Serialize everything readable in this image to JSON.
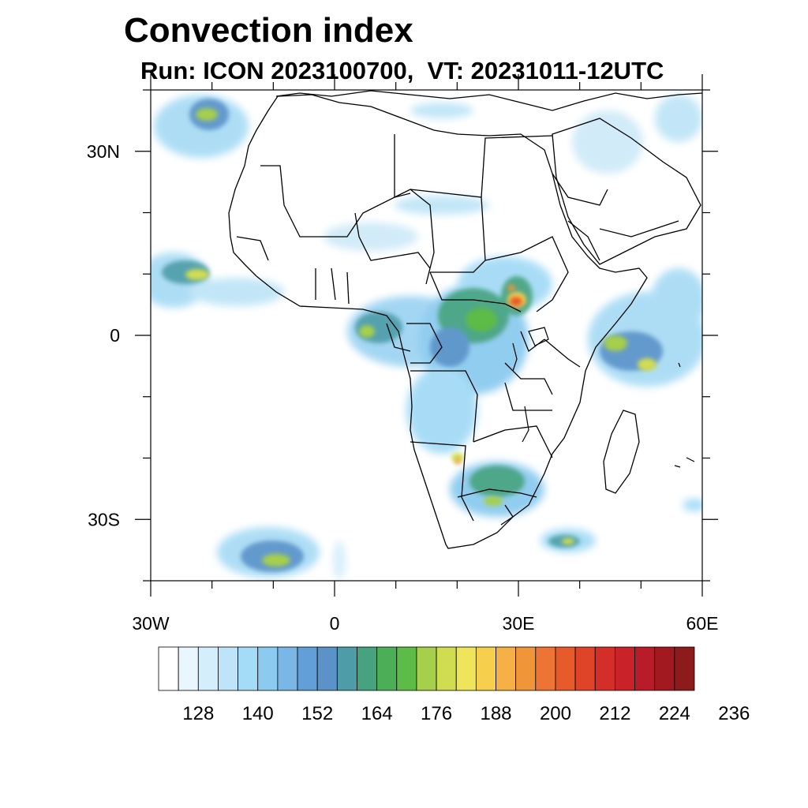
{
  "title": "Convection index",
  "subtitle": "Run: ICON 2023100700,  VT: 20231011-12UTC",
  "map": {
    "projection": "cylindrical-equidistant",
    "lon_range": [
      -30,
      60
    ],
    "lat_range": [
      -40,
      40
    ],
    "lon_ticks": [
      {
        "value": -30,
        "label": "30W"
      },
      {
        "value": 0,
        "label": "0"
      },
      {
        "value": 30,
        "label": "30E"
      },
      {
        "value": 60,
        "label": "60E"
      }
    ],
    "lat_ticks": [
      {
        "value": 30,
        "label": "30N"
      },
      {
        "value": 0,
        "label": "0"
      },
      {
        "value": -30,
        "label": "30S"
      }
    ],
    "field_name": "Convection index"
  },
  "colorbar": {
    "levels": [
      "128",
      "140",
      "152",
      "164",
      "176",
      "188",
      "200",
      "212",
      "224",
      "236"
    ],
    "colors": [
      "#ffffff",
      "#eaf6fd",
      "#d4eefb",
      "#bde4f8",
      "#a4dbf6",
      "#8ccbef",
      "#79b7e6",
      "#629fd9",
      "#5b93c9",
      "#4e9ca8",
      "#47a37f",
      "#4cae57",
      "#5dbb47",
      "#a6cf4c",
      "#d1dd51",
      "#efe55a",
      "#f6d04d",
      "#f5b146",
      "#f09639",
      "#ed7434",
      "#e65a2c",
      "#df4428",
      "#d42e29",
      "#c92229",
      "#b81c28",
      "#a2191f",
      "#8d1b1c"
    ]
  }
}
